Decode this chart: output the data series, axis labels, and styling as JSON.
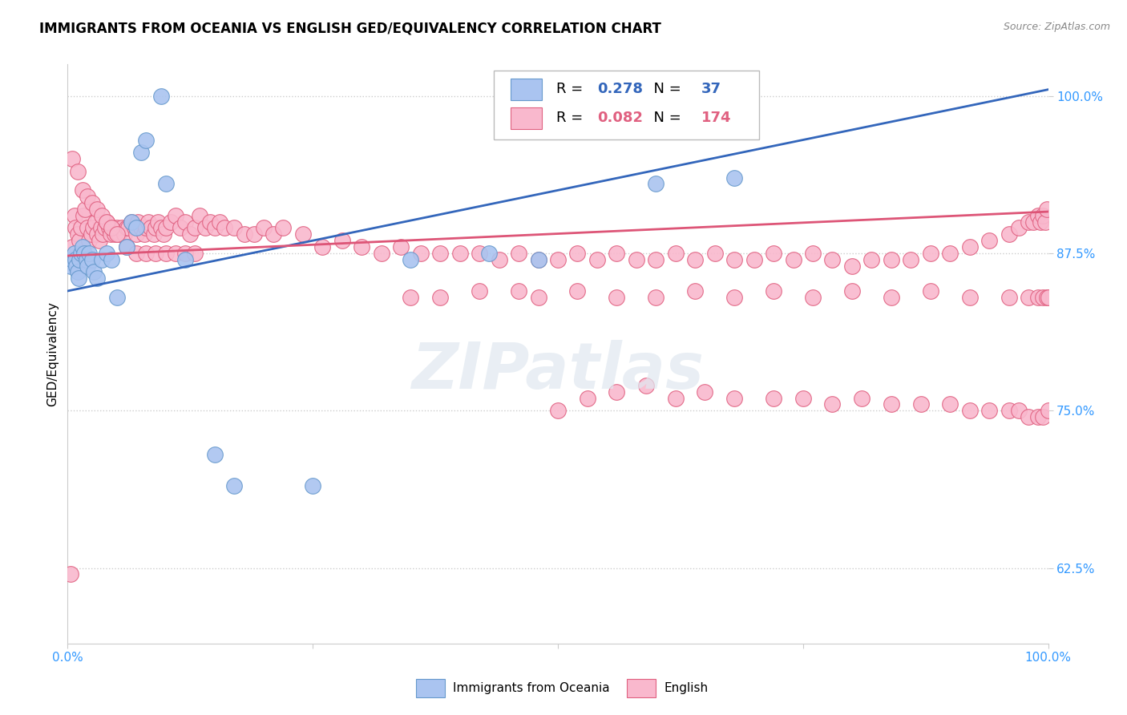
{
  "title": "IMMIGRANTS FROM OCEANIA VS ENGLISH GED/EQUIVALENCY CORRELATION CHART",
  "source": "Source: ZipAtlas.com",
  "ylabel": "GED/Equivalency",
  "ytick_labels": [
    "62.5%",
    "75.0%",
    "87.5%",
    "100.0%"
  ],
  "ytick_values": [
    0.625,
    0.75,
    0.875,
    1.0
  ],
  "xlim": [
    0.0,
    1.0
  ],
  "ylim": [
    0.565,
    1.025
  ],
  "legend_blue_r": "0.278",
  "legend_blue_n": "37",
  "legend_pink_r": "0.082",
  "legend_pink_n": "174",
  "legend_label_blue": "Immigrants from Oceania",
  "legend_label_pink": "English",
  "blue_scatter_x": [
    0.003,
    0.005,
    0.007,
    0.008,
    0.009,
    0.01,
    0.011,
    0.012,
    0.014,
    0.015,
    0.017,
    0.019,
    0.02,
    0.022,
    0.025,
    0.027,
    0.03,
    0.035,
    0.04,
    0.045,
    0.05,
    0.06,
    0.065,
    0.07,
    0.075,
    0.08,
    0.095,
    0.1,
    0.12,
    0.15,
    0.17,
    0.25,
    0.35,
    0.43,
    0.48,
    0.6,
    0.68
  ],
  "blue_scatter_y": [
    0.865,
    0.87,
    0.875,
    0.87,
    0.865,
    0.86,
    0.855,
    0.87,
    0.875,
    0.88,
    0.875,
    0.87,
    0.865,
    0.875,
    0.87,
    0.86,
    0.855,
    0.87,
    0.875,
    0.87,
    0.84,
    0.88,
    0.9,
    0.895,
    0.955,
    0.965,
    1.0,
    0.93,
    0.87,
    0.715,
    0.69,
    0.69,
    0.87,
    0.875,
    0.87,
    0.93,
    0.935
  ],
  "pink_scatter_x": [
    0.003,
    0.005,
    0.007,
    0.008,
    0.01,
    0.012,
    0.014,
    0.016,
    0.018,
    0.02,
    0.022,
    0.024,
    0.026,
    0.028,
    0.03,
    0.032,
    0.034,
    0.036,
    0.038,
    0.04,
    0.042,
    0.044,
    0.046,
    0.048,
    0.05,
    0.052,
    0.055,
    0.058,
    0.06,
    0.062,
    0.065,
    0.068,
    0.07,
    0.072,
    0.075,
    0.078,
    0.08,
    0.082,
    0.085,
    0.088,
    0.09,
    0.092,
    0.095,
    0.098,
    0.1,
    0.105,
    0.11,
    0.115,
    0.12,
    0.125,
    0.13,
    0.135,
    0.14,
    0.145,
    0.15,
    0.155,
    0.16,
    0.17,
    0.18,
    0.19,
    0.2,
    0.21,
    0.22,
    0.24,
    0.26,
    0.28,
    0.3,
    0.32,
    0.34,
    0.36,
    0.38,
    0.4,
    0.42,
    0.44,
    0.46,
    0.48,
    0.5,
    0.52,
    0.54,
    0.56,
    0.58,
    0.6,
    0.62,
    0.64,
    0.66,
    0.68,
    0.7,
    0.72,
    0.74,
    0.76,
    0.78,
    0.8,
    0.82,
    0.84,
    0.86,
    0.88,
    0.9,
    0.92,
    0.94,
    0.96,
    0.97,
    0.98,
    0.985,
    0.99,
    0.992,
    0.995,
    0.997,
    0.999,
    0.005,
    0.01,
    0.015,
    0.02,
    0.025,
    0.03,
    0.035,
    0.04,
    0.045,
    0.05,
    0.06,
    0.07,
    0.08,
    0.09,
    0.1,
    0.11,
    0.12,
    0.13,
    0.35,
    0.38,
    0.42,
    0.46,
    0.48,
    0.52,
    0.56,
    0.6,
    0.64,
    0.68,
    0.72,
    0.76,
    0.8,
    0.84,
    0.88,
    0.92,
    0.96,
    0.98,
    0.99,
    0.995,
    0.999,
    1.0,
    0.5,
    0.53,
    0.56,
    0.59,
    0.62,
    0.65,
    0.68,
    0.72,
    0.75,
    0.78,
    0.81,
    0.84,
    0.87,
    0.9,
    0.92,
    0.94,
    0.96,
    0.97,
    0.98,
    0.99,
    0.995,
    1.0
  ],
  "pink_scatter_y": [
    0.62,
    0.88,
    0.905,
    0.895,
    0.89,
    0.885,
    0.895,
    0.905,
    0.91,
    0.895,
    0.885,
    0.89,
    0.895,
    0.9,
    0.89,
    0.885,
    0.895,
    0.89,
    0.895,
    0.9,
    0.895,
    0.89,
    0.895,
    0.89,
    0.895,
    0.89,
    0.895,
    0.89,
    0.895,
    0.895,
    0.9,
    0.895,
    0.89,
    0.9,
    0.895,
    0.89,
    0.895,
    0.9,
    0.895,
    0.89,
    0.895,
    0.9,
    0.895,
    0.89,
    0.895,
    0.9,
    0.905,
    0.895,
    0.9,
    0.89,
    0.895,
    0.905,
    0.895,
    0.9,
    0.895,
    0.9,
    0.895,
    0.895,
    0.89,
    0.89,
    0.895,
    0.89,
    0.895,
    0.89,
    0.88,
    0.885,
    0.88,
    0.875,
    0.88,
    0.875,
    0.875,
    0.875,
    0.875,
    0.87,
    0.875,
    0.87,
    0.87,
    0.875,
    0.87,
    0.875,
    0.87,
    0.87,
    0.875,
    0.87,
    0.875,
    0.87,
    0.87,
    0.875,
    0.87,
    0.875,
    0.87,
    0.865,
    0.87,
    0.87,
    0.87,
    0.875,
    0.875,
    0.88,
    0.885,
    0.89,
    0.895,
    0.9,
    0.9,
    0.905,
    0.9,
    0.905,
    0.9,
    0.91,
    0.95,
    0.94,
    0.925,
    0.92,
    0.915,
    0.91,
    0.905,
    0.9,
    0.895,
    0.89,
    0.88,
    0.875,
    0.875,
    0.875,
    0.875,
    0.875,
    0.875,
    0.875,
    0.84,
    0.84,
    0.845,
    0.845,
    0.84,
    0.845,
    0.84,
    0.84,
    0.845,
    0.84,
    0.845,
    0.84,
    0.845,
    0.84,
    0.845,
    0.84,
    0.84,
    0.84,
    0.84,
    0.84,
    0.84,
    0.84,
    0.75,
    0.76,
    0.765,
    0.77,
    0.76,
    0.765,
    0.76,
    0.76,
    0.76,
    0.755,
    0.76,
    0.755,
    0.755,
    0.755,
    0.75,
    0.75,
    0.75,
    0.75,
    0.745,
    0.745,
    0.745,
    0.75
  ],
  "blue_line_y_start": 0.845,
  "blue_line_y_end": 1.005,
  "pink_line_y_start": 0.873,
  "pink_line_y_end": 0.908,
  "blue_color": "#aac4f0",
  "pink_color": "#f9b8cd",
  "blue_edge_color": "#6699cc",
  "pink_edge_color": "#e06080",
  "blue_line_color": "#3366bb",
  "pink_line_color": "#dd5577",
  "title_fontsize": 12,
  "watermark_text": "ZIPatlas",
  "grid_color": "#cccccc",
  "tick_color": "#3399ff"
}
